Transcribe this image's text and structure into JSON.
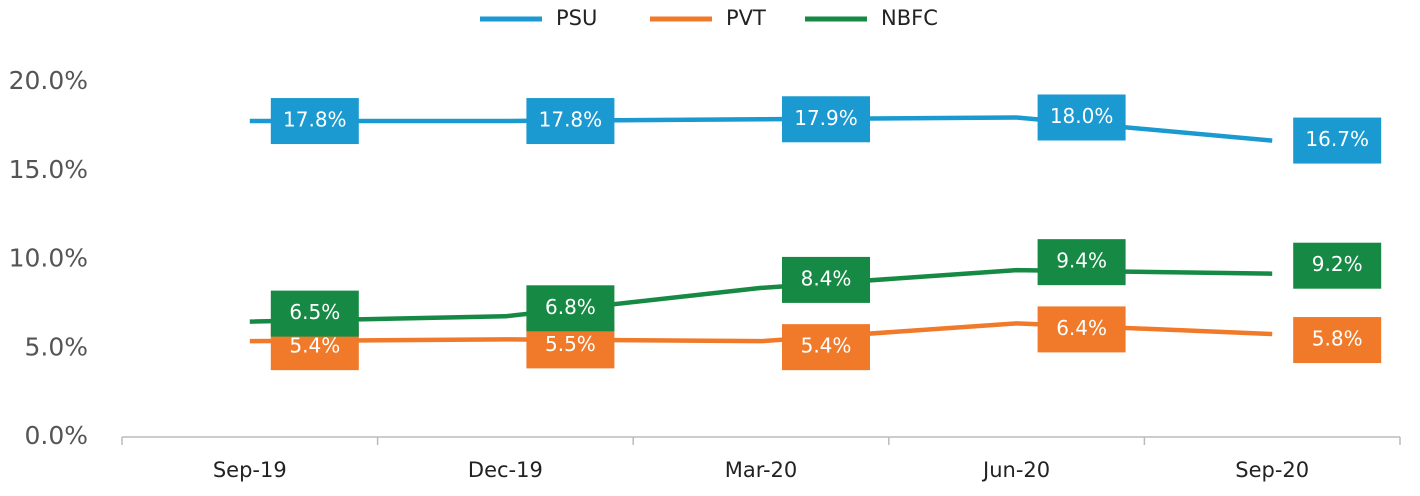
{
  "chart_data": {
    "type": "line",
    "categories": [
      "Sep-19",
      "Dec-19",
      "Mar-20",
      "Jun-20",
      "Sep-20"
    ],
    "series": [
      {
        "name": "PSU",
        "color": "#1a9ad0",
        "values": [
          17.8,
          17.8,
          17.9,
          18.0,
          16.7
        ],
        "value_labels": [
          "17.8%",
          "17.8%",
          "17.9%",
          "18.0%",
          "16.7%"
        ]
      },
      {
        "name": "PVT",
        "color": "#f07a2a",
        "values": [
          5.4,
          5.5,
          5.4,
          6.4,
          5.8
        ],
        "value_labels": [
          "5.4%",
          "5.5%",
          "5.4%",
          "6.4%",
          "5.8%"
        ]
      },
      {
        "name": "NBFC",
        "color": "#168a45",
        "values": [
          6.5,
          6.8,
          8.4,
          9.4,
          9.2
        ],
        "value_labels": [
          "6.5%",
          "6.8%",
          "8.4%",
          "9.4%",
          "9.2%"
        ]
      }
    ],
    "ylim": [
      0,
      20
    ],
    "yticks": [
      {
        "value": 0,
        "label": "0.0%"
      },
      {
        "value": 5,
        "label": "5.0%"
      },
      {
        "value": 10,
        "label": "10.0%"
      },
      {
        "value": 15,
        "label": "15.0%"
      },
      {
        "value": 20,
        "label": "20.0%"
      }
    ],
    "grid": false,
    "legend": "top"
  }
}
